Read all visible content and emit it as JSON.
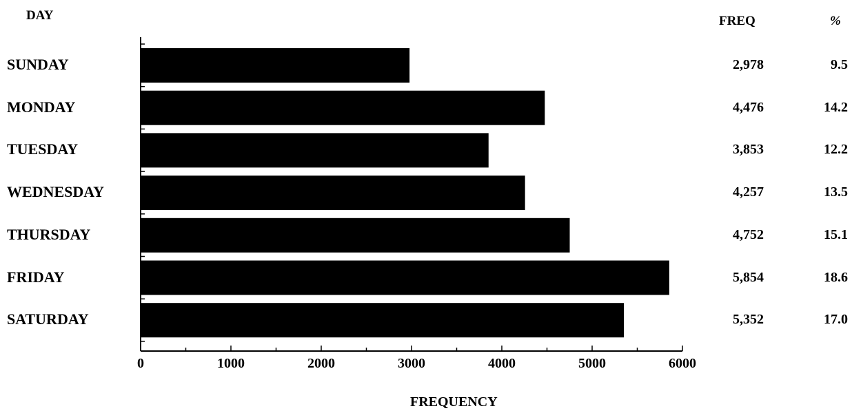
{
  "headers": {
    "day": "DAY",
    "freq": "FREQ",
    "pct": "%"
  },
  "chart_data": {
    "type": "bar",
    "orientation": "horizontal",
    "categories": [
      "SUNDAY",
      "MONDAY",
      "TUESDAY",
      "WEDNESDAY",
      "THURSDAY",
      "FRIDAY",
      "SATURDAY"
    ],
    "values": [
      2978,
      4476,
      3853,
      4257,
      4752,
      5854,
      5352
    ],
    "freq_labels": [
      "2,978",
      "4,476",
      "3,853",
      "4,257",
      "4,752",
      "5,854",
      "5,352"
    ],
    "pct_labels": [
      "9.5",
      "14.2",
      "12.2",
      "13.5",
      "15.1",
      "18.6",
      "17.0"
    ],
    "xlabel": "FREQUENCY",
    "xlim": [
      0,
      6000
    ],
    "xticks": [
      0,
      1000,
      2000,
      3000,
      4000,
      5000,
      6000
    ],
    "bar_color": "#000000",
    "grid": false
  }
}
